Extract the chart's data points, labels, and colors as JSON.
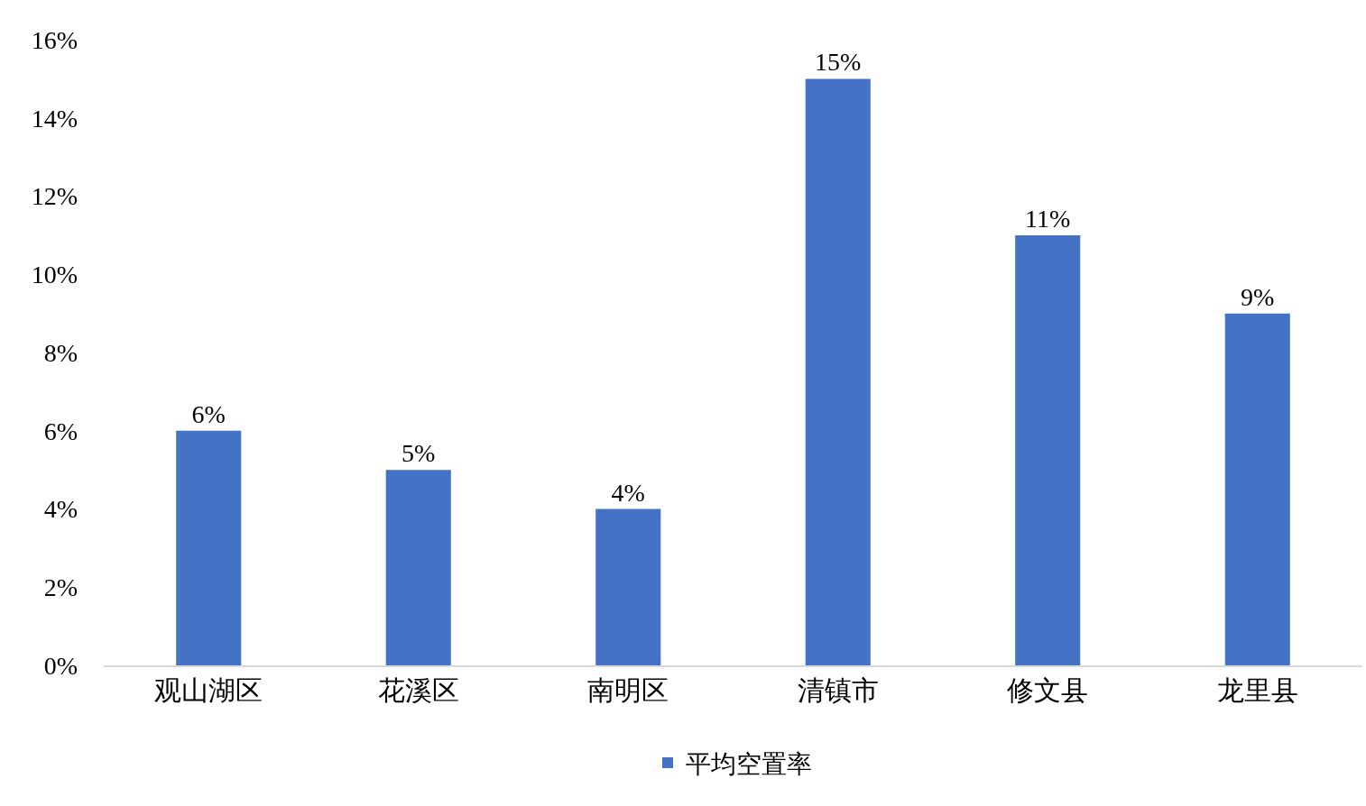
{
  "chart_data": {
    "type": "bar",
    "categories": [
      "观山湖区",
      "花溪区",
      "南明区",
      "清镇市",
      "修文县",
      "龙里县"
    ],
    "series": [
      {
        "name": "平均空置率",
        "color": "#4472c4",
        "values": [
          6,
          5,
          4,
          15,
          11,
          9
        ],
        "value_labels": [
          "6%",
          "5%",
          "4%",
          "15%",
          "11%",
          "9%"
        ]
      }
    ],
    "ylim": [
      0,
      16
    ],
    "yticks": [
      {
        "value": 0,
        "label": "0%"
      },
      {
        "value": 2,
        "label": "2%"
      },
      {
        "value": 4,
        "label": "4%"
      },
      {
        "value": 6,
        "label": "6%"
      },
      {
        "value": 8,
        "label": "8%"
      },
      {
        "value": 10,
        "label": "10%"
      },
      {
        "value": 12,
        "label": "12%"
      },
      {
        "value": 14,
        "label": "14%"
      },
      {
        "value": 16,
        "label": "16%"
      }
    ],
    "grid": false,
    "legend": "bottom"
  }
}
